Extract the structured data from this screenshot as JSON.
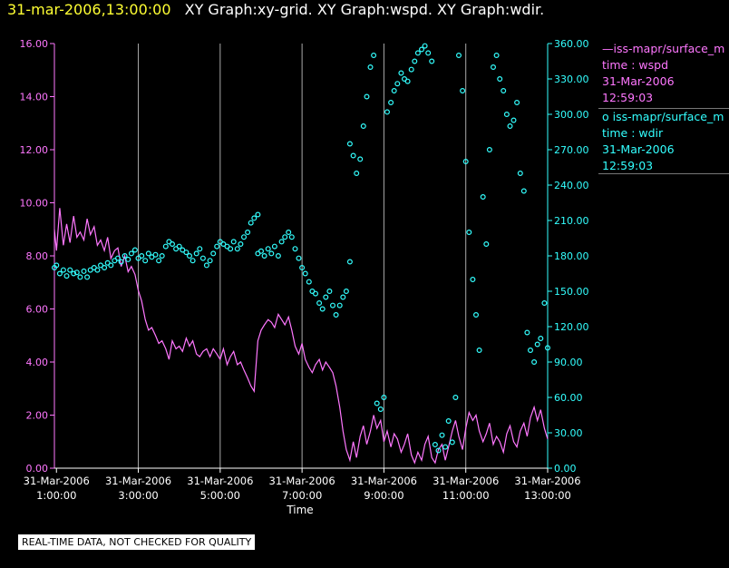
{
  "header": {
    "time": "31-mar-2006,13:00:00",
    "graphs": "XY Graph:xy-grid.  XY Graph:wspd.  XY Graph:wdir."
  },
  "legend": [
    {
      "line1": "—iss-mapr/surface_m",
      "line2": "time : wspd",
      "line3": "31-Mar-2006",
      "line4": "12:59:03"
    },
    {
      "line1": "o  iss-mapr/surface_m",
      "line2": "time : wdir",
      "line3": "31-Mar-2006",
      "line4": "12:59:03"
    }
  ],
  "disclaimer": "REAL-TIME DATA, NOT CHECKED FOR QUALITY",
  "colors": {
    "wspd": "#ff77ff",
    "wdir": "#33ffff",
    "axis": "#ffffff",
    "grid": "#aaaaaa",
    "header_time": "#ffff33"
  },
  "chart_data": {
    "type": "line",
    "xlabel": "Time",
    "x_ticks": [
      {
        "hour": 1,
        "line1": "31-Mar-2006",
        "line2": "1:00:00"
      },
      {
        "hour": 3,
        "line1": "31-Mar-2006",
        "line2": "3:00:00"
      },
      {
        "hour": 5,
        "line1": "31-Mar-2006",
        "line2": "5:00:00"
      },
      {
        "hour": 7,
        "line1": "31-Mar-2006",
        "line2": "7:00:00"
      },
      {
        "hour": 9,
        "line1": "31-Mar-2006",
        "line2": "9:00:00"
      },
      {
        "hour": 11,
        "line1": "31-Mar-2006",
        "line2": "11:00:00"
      },
      {
        "hour": 13,
        "line1": "31-Mar-2006",
        "line2": "13:00:00"
      }
    ],
    "xlim_hours": [
      0.95,
      13.0
    ],
    "left_axis": {
      "ylim": [
        0,
        16
      ],
      "ticks": [
        "0.00",
        "2.00",
        "4.00",
        "6.00",
        "8.00",
        "10.00",
        "12.00",
        "14.00",
        "16.00"
      ]
    },
    "right_axis": {
      "ylim": [
        0,
        360
      ],
      "ticks": [
        "0.00",
        "30.00",
        "60.00",
        "90.00",
        "120.00",
        "150.00",
        "180.00",
        "210.00",
        "240.00",
        "270.00",
        "300.00",
        "330.00",
        "360.00"
      ]
    },
    "grid": "vertical lines at 3:00, 5:00, 7:00, 9:00, 11:00, 13:00",
    "series": [
      {
        "name": "iss-mapr/surface_m  time : wspd",
        "style": "line",
        "axis": "left",
        "points": [
          [
            0.95,
            9.0
          ],
          [
            1.0,
            8.2
          ],
          [
            1.08,
            9.8
          ],
          [
            1.17,
            8.4
          ],
          [
            1.25,
            9.2
          ],
          [
            1.33,
            8.5
          ],
          [
            1.42,
            9.5
          ],
          [
            1.5,
            8.7
          ],
          [
            1.58,
            8.9
          ],
          [
            1.67,
            8.6
          ],
          [
            1.75,
            9.4
          ],
          [
            1.83,
            8.8
          ],
          [
            1.92,
            9.1
          ],
          [
            2.0,
            8.4
          ],
          [
            2.08,
            8.6
          ],
          [
            2.17,
            8.2
          ],
          [
            2.25,
            8.7
          ],
          [
            2.33,
            7.9
          ],
          [
            2.42,
            8.2
          ],
          [
            2.5,
            8.3
          ],
          [
            2.58,
            7.6
          ],
          [
            2.67,
            8.0
          ],
          [
            2.75,
            7.4
          ],
          [
            2.83,
            7.6
          ],
          [
            2.92,
            7.3
          ],
          [
            3.0,
            6.7
          ],
          [
            3.08,
            6.3
          ],
          [
            3.17,
            5.6
          ],
          [
            3.25,
            5.2
          ],
          [
            3.33,
            5.3
          ],
          [
            3.42,
            5.0
          ],
          [
            3.5,
            4.7
          ],
          [
            3.58,
            4.8
          ],
          [
            3.67,
            4.5
          ],
          [
            3.75,
            4.1
          ],
          [
            3.83,
            4.8
          ],
          [
            3.92,
            4.5
          ],
          [
            4.0,
            4.6
          ],
          [
            4.08,
            4.4
          ],
          [
            4.17,
            4.9
          ],
          [
            4.25,
            4.6
          ],
          [
            4.33,
            4.8
          ],
          [
            4.42,
            4.3
          ],
          [
            4.5,
            4.2
          ],
          [
            4.58,
            4.4
          ],
          [
            4.67,
            4.5
          ],
          [
            4.75,
            4.2
          ],
          [
            4.83,
            4.5
          ],
          [
            4.92,
            4.3
          ],
          [
            5.0,
            4.1
          ],
          [
            5.08,
            4.5
          ],
          [
            5.17,
            3.9
          ],
          [
            5.25,
            4.2
          ],
          [
            5.33,
            4.4
          ],
          [
            5.42,
            3.9
          ],
          [
            5.5,
            4.0
          ],
          [
            5.58,
            3.7
          ],
          [
            5.67,
            3.4
          ],
          [
            5.75,
            3.1
          ],
          [
            5.83,
            2.9
          ],
          [
            5.92,
            4.8
          ],
          [
            6.0,
            5.2
          ],
          [
            6.08,
            5.4
          ],
          [
            6.17,
            5.6
          ],
          [
            6.25,
            5.5
          ],
          [
            6.33,
            5.3
          ],
          [
            6.42,
            5.8
          ],
          [
            6.5,
            5.6
          ],
          [
            6.58,
            5.4
          ],
          [
            6.67,
            5.7
          ],
          [
            6.75,
            5.2
          ],
          [
            6.83,
            4.6
          ],
          [
            6.92,
            4.3
          ],
          [
            7.0,
            4.7
          ],
          [
            7.08,
            4.1
          ],
          [
            7.17,
            3.8
          ],
          [
            7.25,
            3.6
          ],
          [
            7.33,
            3.9
          ],
          [
            7.42,
            4.1
          ],
          [
            7.5,
            3.7
          ],
          [
            7.58,
            4.0
          ],
          [
            7.67,
            3.8
          ],
          [
            7.75,
            3.6
          ],
          [
            7.83,
            3.1
          ],
          [
            7.92,
            2.3
          ],
          [
            8.0,
            1.4
          ],
          [
            8.08,
            0.7
          ],
          [
            8.17,
            0.3
          ],
          [
            8.25,
            1.0
          ],
          [
            8.33,
            0.4
          ],
          [
            8.42,
            1.2
          ],
          [
            8.5,
            1.6
          ],
          [
            8.58,
            0.9
          ],
          [
            8.67,
            1.4
          ],
          [
            8.75,
            2.0
          ],
          [
            8.83,
            1.5
          ],
          [
            8.92,
            1.8
          ],
          [
            9.0,
            1.0
          ],
          [
            9.08,
            1.4
          ],
          [
            9.17,
            0.8
          ],
          [
            9.25,
            1.3
          ],
          [
            9.33,
            1.1
          ],
          [
            9.42,
            0.6
          ],
          [
            9.5,
            0.9
          ],
          [
            9.58,
            1.3
          ],
          [
            9.67,
            0.5
          ],
          [
            9.75,
            0.2
          ],
          [
            9.83,
            0.6
          ],
          [
            9.92,
            0.3
          ],
          [
            10.0,
            0.9
          ],
          [
            10.08,
            1.2
          ],
          [
            10.17,
            0.4
          ],
          [
            10.25,
            0.2
          ],
          [
            10.33,
            0.7
          ],
          [
            10.42,
            0.9
          ],
          [
            10.5,
            0.3
          ],
          [
            10.58,
            0.8
          ],
          [
            10.67,
            1.4
          ],
          [
            10.75,
            1.8
          ],
          [
            10.83,
            1.2
          ],
          [
            10.92,
            0.7
          ],
          [
            11.0,
            1.5
          ],
          [
            11.08,
            2.1
          ],
          [
            11.17,
            1.8
          ],
          [
            11.25,
            2.0
          ],
          [
            11.33,
            1.4
          ],
          [
            11.42,
            1.0
          ],
          [
            11.5,
            1.3
          ],
          [
            11.58,
            1.7
          ],
          [
            11.67,
            0.9
          ],
          [
            11.75,
            1.2
          ],
          [
            11.83,
            1.0
          ],
          [
            11.92,
            0.6
          ],
          [
            12.0,
            1.3
          ],
          [
            12.08,
            1.6
          ],
          [
            12.17,
            1.0
          ],
          [
            12.25,
            0.8
          ],
          [
            12.33,
            1.4
          ],
          [
            12.42,
            1.7
          ],
          [
            12.5,
            1.2
          ],
          [
            12.58,
            1.9
          ],
          [
            12.67,
            2.3
          ],
          [
            12.75,
            1.8
          ],
          [
            12.83,
            2.2
          ],
          [
            12.92,
            1.5
          ],
          [
            13.0,
            1.1
          ]
        ]
      },
      {
        "name": "iss-mapr/surface_m  time : wdir",
        "style": "scatter",
        "axis": "right",
        "points": [
          [
            0.95,
            170
          ],
          [
            1.0,
            172
          ],
          [
            1.08,
            165
          ],
          [
            1.17,
            168
          ],
          [
            1.25,
            163
          ],
          [
            1.33,
            168
          ],
          [
            1.42,
            165
          ],
          [
            1.5,
            166
          ],
          [
            1.58,
            162
          ],
          [
            1.67,
            167
          ],
          [
            1.75,
            162
          ],
          [
            1.83,
            168
          ],
          [
            1.92,
            170
          ],
          [
            2.0,
            168
          ],
          [
            2.08,
            172
          ],
          [
            2.17,
            170
          ],
          [
            2.25,
            174
          ],
          [
            2.33,
            172
          ],
          [
            2.42,
            176
          ],
          [
            2.5,
            178
          ],
          [
            2.58,
            175
          ],
          [
            2.67,
            180
          ],
          [
            2.75,
            177
          ],
          [
            2.83,
            182
          ],
          [
            2.92,
            185
          ],
          [
            3.0,
            178
          ],
          [
            3.08,
            180
          ],
          [
            3.17,
            176
          ],
          [
            3.25,
            182
          ],
          [
            3.33,
            179
          ],
          [
            3.42,
            181
          ],
          [
            3.5,
            176
          ],
          [
            3.58,
            180
          ],
          [
            3.67,
            188
          ],
          [
            3.75,
            192
          ],
          [
            3.83,
            190
          ],
          [
            3.92,
            186
          ],
          [
            4.0,
            188
          ],
          [
            4.08,
            185
          ],
          [
            4.17,
            183
          ],
          [
            4.25,
            180
          ],
          [
            4.33,
            176
          ],
          [
            4.42,
            182
          ],
          [
            4.5,
            186
          ],
          [
            4.58,
            178
          ],
          [
            4.67,
            172
          ],
          [
            4.75,
            176
          ],
          [
            4.83,
            182
          ],
          [
            4.92,
            188
          ],
          [
            5.0,
            192
          ],
          [
            5.08,
            190
          ],
          [
            5.17,
            188
          ],
          [
            5.25,
            186
          ],
          [
            5.33,
            192
          ],
          [
            5.42,
            186
          ],
          [
            5.5,
            190
          ],
          [
            5.58,
            196
          ],
          [
            5.67,
            200
          ],
          [
            5.75,
            208
          ],
          [
            5.83,
            212
          ],
          [
            5.92,
            215
          ],
          [
            5.92,
            182
          ],
          [
            6.0,
            184
          ],
          [
            6.08,
            180
          ],
          [
            6.17,
            186
          ],
          [
            6.25,
            182
          ],
          [
            6.33,
            188
          ],
          [
            6.42,
            180
          ],
          [
            6.5,
            192
          ],
          [
            6.58,
            196
          ],
          [
            6.67,
            200
          ],
          [
            6.75,
            196
          ],
          [
            6.83,
            186
          ],
          [
            6.92,
            178
          ],
          [
            7.0,
            170
          ],
          [
            7.08,
            165
          ],
          [
            7.17,
            158
          ],
          [
            7.25,
            150
          ],
          [
            7.33,
            148
          ],
          [
            7.42,
            140
          ],
          [
            7.5,
            135
          ],
          [
            7.58,
            145
          ],
          [
            7.67,
            150
          ],
          [
            7.75,
            138
          ],
          [
            7.83,
            130
          ],
          [
            7.92,
            138
          ],
          [
            8.0,
            145
          ],
          [
            8.08,
            150
          ],
          [
            8.17,
            175
          ],
          [
            8.17,
            275
          ],
          [
            8.25,
            265
          ],
          [
            8.33,
            250
          ],
          [
            8.42,
            262
          ],
          [
            8.5,
            290
          ],
          [
            8.58,
            315
          ],
          [
            8.67,
            340
          ],
          [
            8.75,
            350
          ],
          [
            8.83,
            55
          ],
          [
            8.92,
            50
          ],
          [
            9.0,
            60
          ],
          [
            9.08,
            302
          ],
          [
            9.17,
            310
          ],
          [
            9.25,
            320
          ],
          [
            9.33,
            326
          ],
          [
            9.42,
            335
          ],
          [
            9.5,
            330
          ],
          [
            9.58,
            328
          ],
          [
            9.67,
            338
          ],
          [
            9.75,
            345
          ],
          [
            9.83,
            352
          ],
          [
            9.92,
            355
          ],
          [
            10.0,
            358
          ],
          [
            10.08,
            352
          ],
          [
            10.17,
            345
          ],
          [
            10.25,
            20
          ],
          [
            10.33,
            15
          ],
          [
            10.42,
            28
          ],
          [
            10.5,
            18
          ],
          [
            10.58,
            40
          ],
          [
            10.67,
            22
          ],
          [
            10.75,
            60
          ],
          [
            10.83,
            350
          ],
          [
            10.92,
            320
          ],
          [
            11.0,
            260
          ],
          [
            11.08,
            200
          ],
          [
            11.17,
            160
          ],
          [
            11.25,
            130
          ],
          [
            11.33,
            100
          ],
          [
            11.42,
            230
          ],
          [
            11.5,
            190
          ],
          [
            11.58,
            270
          ],
          [
            11.67,
            340
          ],
          [
            11.75,
            350
          ],
          [
            11.83,
            330
          ],
          [
            11.92,
            320
          ],
          [
            12.0,
            300
          ],
          [
            12.08,
            290
          ],
          [
            12.17,
            295
          ],
          [
            12.25,
            310
          ],
          [
            12.33,
            250
          ],
          [
            12.42,
            235
          ],
          [
            12.5,
            115
          ],
          [
            12.58,
            100
          ],
          [
            12.67,
            90
          ],
          [
            12.75,
            105
          ],
          [
            12.83,
            110
          ],
          [
            12.92,
            140
          ],
          [
            13.0,
            102
          ]
        ]
      }
    ]
  }
}
